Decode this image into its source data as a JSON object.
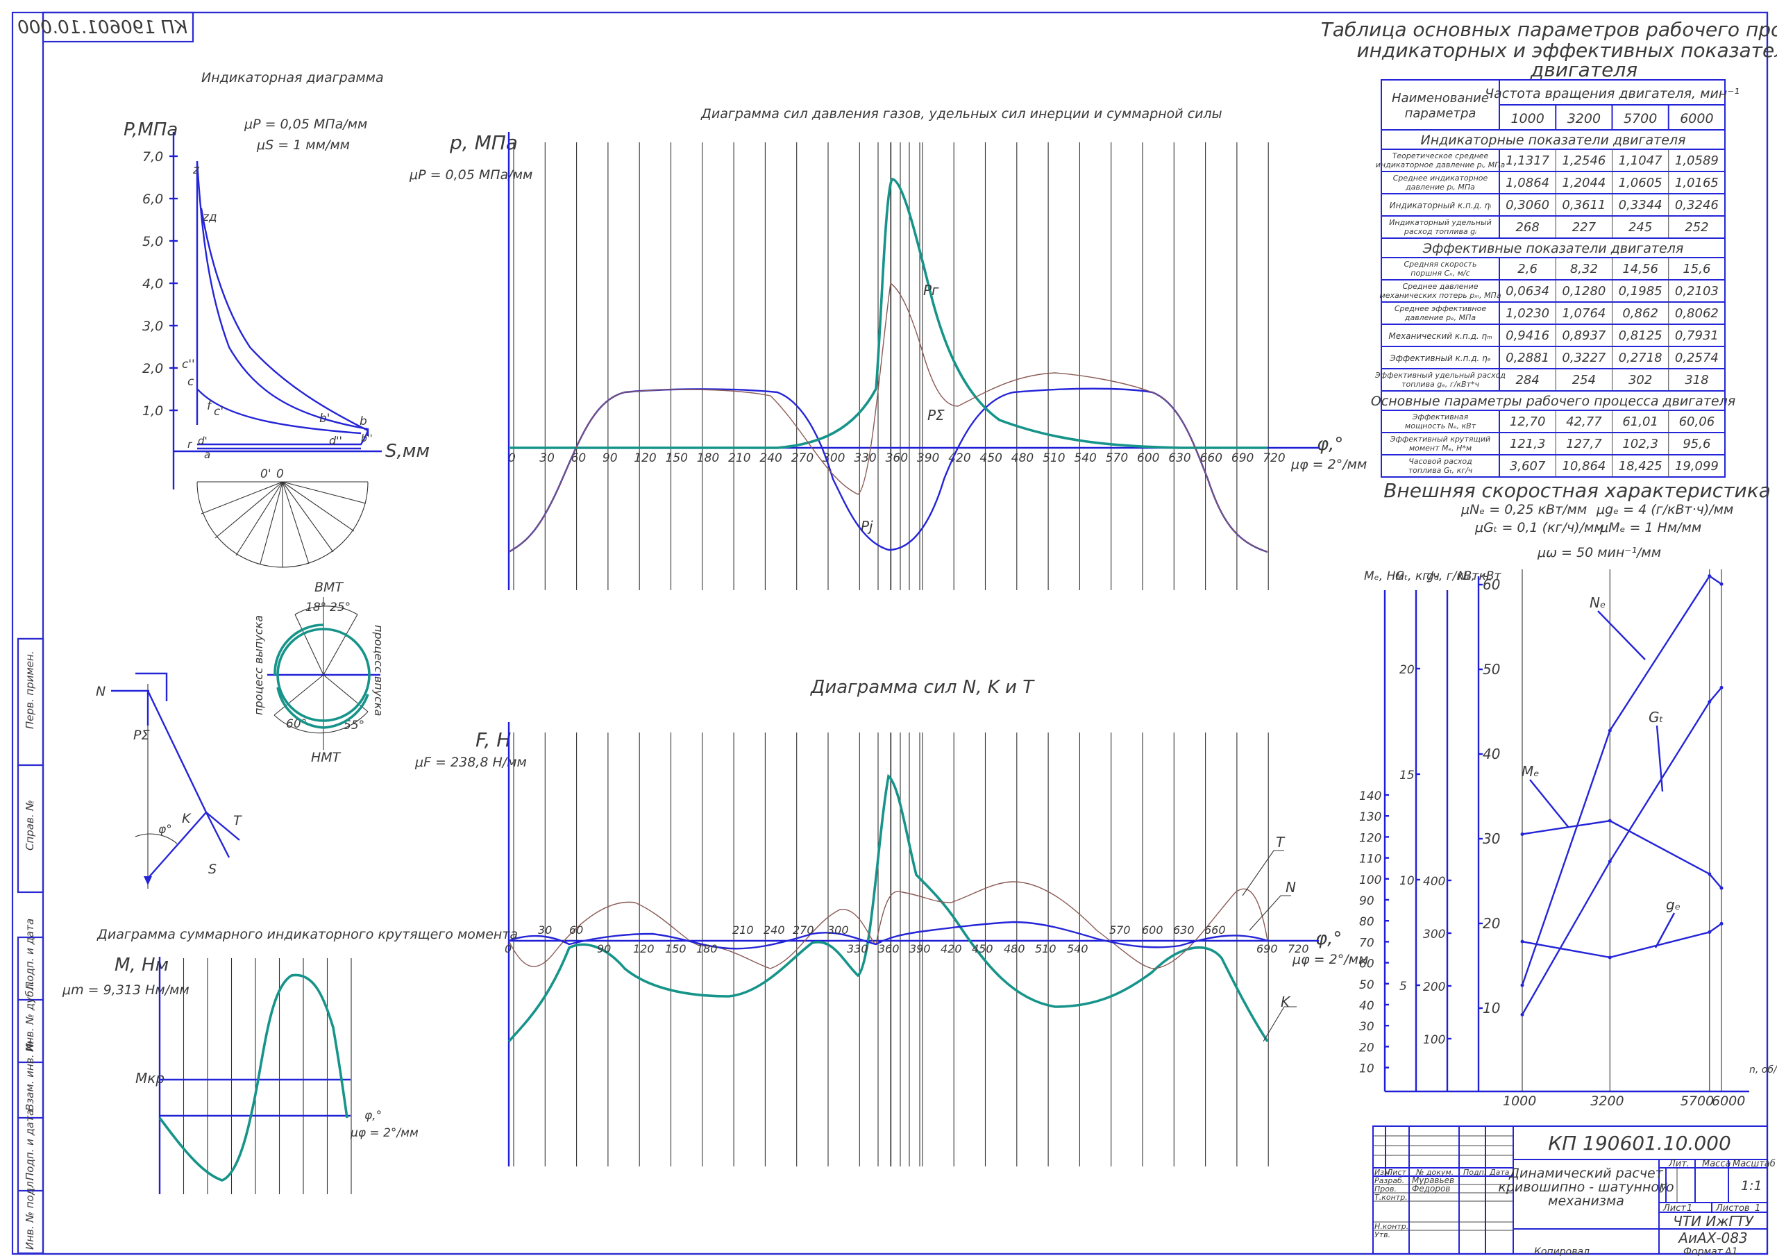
{
  "sheet": {
    "doc_code": "КП 190601.10.000",
    "mirror_code": "КП 190601.10.000",
    "side_labels": [
      "Перв. примен.",
      "Справ. №",
      "Подп. и дата",
      "Инв. № дубл.",
      "Взам. инв. №",
      "Подп. и дата",
      "Инв. № подл."
    ]
  },
  "indicator": {
    "title": "Индикаторная диаграмма",
    "mu_p": "μP = 0,05 МПа/мм",
    "mu_s": "μS = 1 мм/мм",
    "y_axis": "P,МПа",
    "x_axis": "S,мм",
    "y_ticks": [
      "7,0",
      "6,0",
      "5,0",
      "4,0",
      "3,0",
      "2,0",
      "1,0"
    ],
    "points": [
      "z",
      "zд",
      "c''",
      "c",
      "f",
      "c'",
      "b'",
      "b",
      "b''",
      "d''",
      "d'",
      "r",
      "a",
      "a'",
      "0'",
      "0"
    ]
  },
  "pressure": {
    "title": "Диаграмма сил давления газов, удельных сил инерции и суммарной силы",
    "y_axis": "p, МПа",
    "mu": "μP = 0,05 МПа/мм",
    "x_axis": "φ,°",
    "mu_phi": "μφ = 2°/мм",
    "x_ticks": [
      "0",
      "30",
      "60",
      "90",
      "120",
      "150",
      "180",
      "210",
      "240",
      "270",
      "300",
      "330",
      "360",
      "390",
      "420",
      "450",
      "480",
      "510",
      "540",
      "570",
      "600",
      "630",
      "660",
      "690",
      "720"
    ],
    "labels": [
      "Pг",
      "PΣ",
      "Pj"
    ]
  },
  "forces": {
    "title": "Диаграмма сил N, K и T",
    "y_axis": "F, Н",
    "mu": "μF = 238,8 Н/мм",
    "x_axis": "φ,°",
    "mu_phi": "μφ = 2°/мм",
    "x_ticks_upper": [
      "30",
      "60",
      "210",
      "240",
      "270",
      "300",
      "570",
      "600",
      "630",
      "660"
    ],
    "x_ticks_lower": [
      "0",
      "90",
      "120",
      "150",
      "180",
      "330",
      "360",
      "390",
      "420",
      "450",
      "480",
      "510",
      "540",
      "690",
      "720"
    ],
    "labels": [
      "T",
      "N",
      "K"
    ]
  },
  "mechanism": {
    "labels": [
      "N",
      "PΣ",
      "K",
      "T",
      "S",
      "φ°"
    ]
  },
  "timing": {
    "top": "ВМТ",
    "bottom": "НМТ",
    "a1": "18°",
    "a2": "25°",
    "a3": "60°",
    "a4": "55°",
    "left": "процесс выпуска",
    "right": "процесс впуска"
  },
  "torque": {
    "title": "Диаграмма суммарного индикаторного крутящего момента",
    "y_axis": "M, Нм",
    "mu": "μm = 9,313 Нм/мм",
    "mkr": "Mкр",
    "x_axis": "φ,°",
    "mu_phi": "μφ = 2°/мм"
  },
  "table": {
    "title": "Таблица основных параметров рабочего процесса, индикаторных и эффективных показателей двигателя",
    "head_name": "Наименование параметра",
    "head_freq": "Частота вращения двигателя, мин⁻¹",
    "speeds": [
      "1000",
      "3200",
      "5700",
      "6000"
    ],
    "sections": [
      {
        "title": "Индикаторные показатели двигателя",
        "rows": [
          {
            "name": "Теоретическое среднее индикаторное давление pᵢ, МПа",
            "v": [
              "1,1317",
              "1,2546",
              "1,1047",
              "1,0589"
            ]
          },
          {
            "name": "Среднее индикаторное давление pᵢ, МПа",
            "v": [
              "1,0864",
              "1,2044",
              "1,0605",
              "1,0165"
            ]
          },
          {
            "name": "Индикаторный к.п.д. ηᵢ",
            "v": [
              "0,3060",
              "0,3611",
              "0,3344",
              "0,3246"
            ]
          },
          {
            "name": "Индикаторный удельный расход топлива gᵢ",
            "v": [
              "268",
              "227",
              "245",
              "252"
            ]
          }
        ]
      },
      {
        "title": "Эффективные показатели двигателя",
        "rows": [
          {
            "name": "Средняя скорость поршня Cₙ, м/с",
            "v": [
              "2,6",
              "8,32",
              "14,56",
              "15,6"
            ]
          },
          {
            "name": "Среднее давление механических потерь pₘ, МПа",
            "v": [
              "0,0634",
              "0,1280",
              "0,1985",
              "0,2103"
            ]
          },
          {
            "name": "Среднее эффективное давление pₑ, МПа",
            "v": [
              "1,0230",
              "1,0764",
              "0,862",
              "0,8062"
            ]
          },
          {
            "name": "Механический к.п.д. ηₘ",
            "v": [
              "0,9416",
              "0,8937",
              "0,8125",
              "0,7931"
            ]
          },
          {
            "name": "Эффективный к.п.д. ηₑ",
            "v": [
              "0,2881",
              "0,3227",
              "0,2718",
              "0,2574"
            ]
          },
          {
            "name": "Эффективный удельный расход топлива gₑ, г/кВт*ч",
            "v": [
              "284",
              "254",
              "302",
              "318"
            ]
          }
        ]
      },
      {
        "title": "Основные параметры рабочего процесса двигателя",
        "rows": [
          {
            "name": "Эффективная мощность Nₑ, кВт",
            "v": [
              "12,70",
              "42,77",
              "61,01",
              "60,06"
            ]
          },
          {
            "name": "Эффективный крутящий момент Mₑ, Н*м",
            "v": [
              "121,3",
              "127,7",
              "102,3",
              "95,6"
            ]
          },
          {
            "name": "Часовой расход топлива Gₜ, кг/ч",
            "v": [
              "3,607",
              "10,864",
              "18,425",
              "19,099"
            ]
          }
        ]
      }
    ]
  },
  "ext": {
    "title": "Внешняя скоростная характеристика",
    "mu1": "μNₑ = 0,25 кВт/мм",
    "mu2": "μgₑ = 4 (г/кВт·ч)/мм",
    "mu3": "μGₜ = 0,1 (кг/ч)/мм",
    "mu4": "μMₑ = 1 Нм/мм",
    "mu5": "μω = 50 мин⁻¹/мм",
    "ax_me": "Mₑ, Нм",
    "ax_gt": "Gₜ, кг/ч",
    "ax_ge": "gₑ, г/кВт·ч",
    "ax_ne": "Nₑ, кВт",
    "me_ticks": [
      "140",
      "130",
      "120",
      "110",
      "100",
      "90",
      "80",
      "70",
      "60",
      "50",
      "40",
      "30",
      "20",
      "10"
    ],
    "gt_ticks": [
      "20",
      "15",
      "10",
      "5"
    ],
    "ge_ticks": [
      "400",
      "300",
      "200",
      "100"
    ],
    "ne_ticks": [
      "60",
      "50",
      "40",
      "30",
      "20",
      "10"
    ],
    "x_ticks": [
      "1000",
      "3200",
      "5700",
      "6000"
    ],
    "x_axis": "n, об/мин",
    "curve_labels": [
      "Nₑ",
      "Gₜ",
      "Mₑ",
      "gₑ"
    ]
  },
  "title_block": {
    "code": "КП 190601.10.000",
    "name": "Динамический расчет кривошипно - шатунного механизма",
    "cols": [
      "Изм.",
      "Лист",
      "№ докум.",
      "Подп.",
      "Дата"
    ],
    "roles": [
      "Разраб.",
      "Пров.",
      "Т.контр.",
      "Н.контр.",
      "Утв."
    ],
    "dev": "Муравьев",
    "chk": "Федоров",
    "lit": "Лит.",
    "mass": "Масса",
    "scale": "Масштаб",
    "lit_val": "у",
    "scale_val": "1:1",
    "sheet": "Лист",
    "sheet_no": "1",
    "sheets": "Листов",
    "sheets_no": "1",
    "org1": "ЧТИ ИжГТУ",
    "org2": "АиАХ-083",
    "copied": "Копировал",
    "format": "Формат",
    "format_val": "А1"
  },
  "chart_data": [
    {
      "type": "line",
      "title": "Внешняя скоростная характеристика",
      "x": [
        1000,
        3200,
        5700,
        6000
      ],
      "series": [
        {
          "name": "Nₑ",
          "values": [
            12.7,
            42.77,
            61.01,
            60.06
          ]
        },
        {
          "name": "Mₑ",
          "values": [
            121.3,
            127.7,
            102.3,
            95.6
          ]
        },
        {
          "name": "Gₜ",
          "values": [
            3.607,
            10.864,
            18.425,
            19.099
          ]
        },
        {
          "name": "gₑ",
          "values": [
            284,
            254,
            302,
            318
          ]
        }
      ]
    }
  ]
}
